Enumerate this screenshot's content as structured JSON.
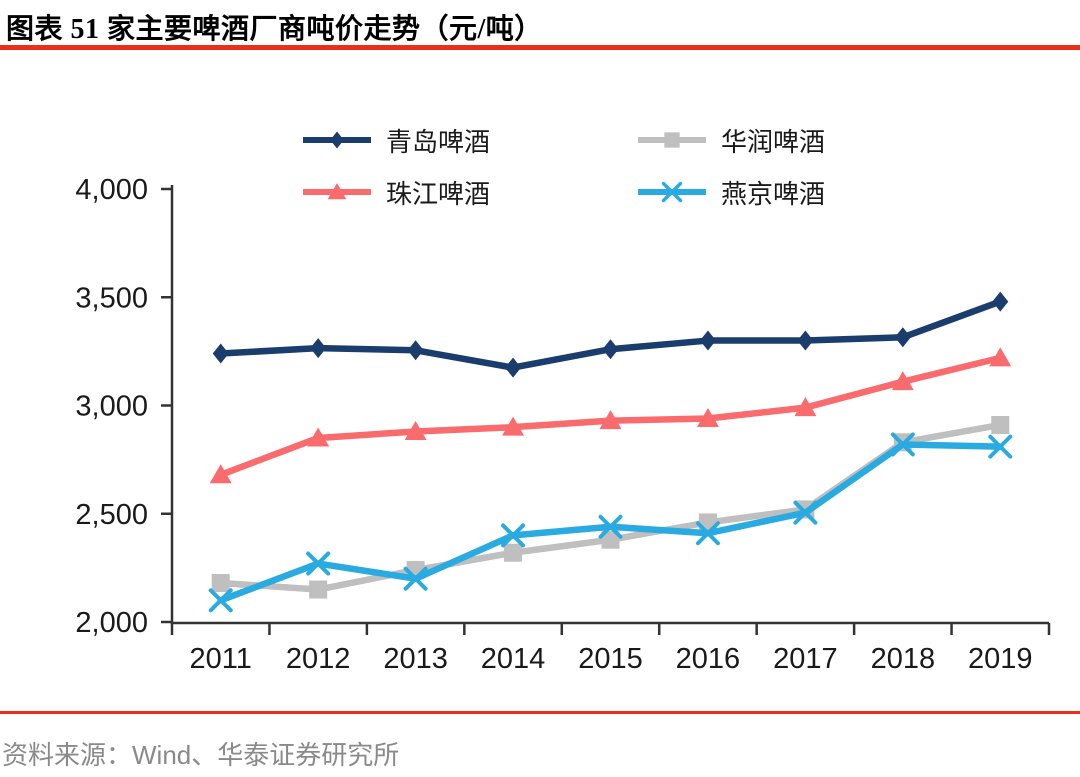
{
  "page": {
    "title": "图表 51 家主要啤酒厂商吨价走势（元/吨）",
    "source_note": "资料来源：Wind、华泰证券研究所"
  },
  "colors": {
    "accent_rule_red": "#E8301A",
    "axis": "#333333",
    "text": "#1A1A1A",
    "source_text": "#8A8A8A",
    "qingdao_navy": "#1A3D6D",
    "huarun_gray": "#BFBFBF",
    "zhujiang_red": "#F96B6D",
    "yanjing_blue": "#29ABE2"
  },
  "chart_data": {
    "type": "line",
    "title": "家主要啤酒厂商吨价走势（元/吨）",
    "xlabel": "",
    "ylabel": "",
    "x": [
      "2011",
      "2012",
      "2013",
      "2014",
      "2015",
      "2016",
      "2017",
      "2018",
      "2019"
    ],
    "ylim": [
      2000,
      4000
    ],
    "yticks": [
      2000,
      2500,
      3000,
      3500,
      4000
    ],
    "ytick_labels": [
      "2,000",
      "2,500",
      "3,000",
      "3,500",
      "4,000"
    ],
    "grid": false,
    "legend_position": "top",
    "series": [
      {
        "id": "qingdao-beer",
        "name": "青岛啤酒",
        "color": "#1A3D6D",
        "marker": "diamond",
        "values": [
          3240,
          3265,
          3255,
          3175,
          3260,
          3300,
          3300,
          3315,
          3480
        ]
      },
      {
        "id": "huarun-beer",
        "name": "华润啤酒",
        "color": "#BFBFBF",
        "marker": "square",
        "values": [
          2180,
          2150,
          2240,
          2320,
          2380,
          2460,
          2520,
          2830,
          2910
        ]
      },
      {
        "id": "zhujiang-beer",
        "name": "珠江啤酒",
        "color": "#F96B6D",
        "marker": "triangle",
        "values": [
          2680,
          2850,
          2880,
          2900,
          2930,
          2940,
          2990,
          3110,
          3220
        ]
      },
      {
        "id": "yanjing-beer",
        "name": "燕京啤酒",
        "color": "#29ABE2",
        "marker": "x",
        "values": [
          2100,
          2270,
          2200,
          2400,
          2440,
          2410,
          2505,
          2820,
          2810
        ]
      }
    ],
    "legend_rows": [
      [
        "qingdao-beer",
        "huarun-beer"
      ],
      [
        "zhujiang-beer",
        "yanjing-beer"
      ]
    ]
  }
}
